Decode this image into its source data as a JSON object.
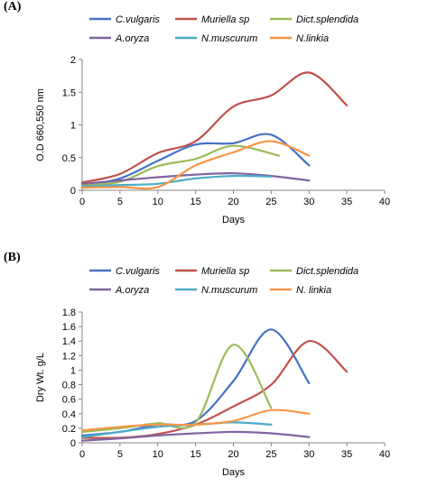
{
  "chart_data": [
    {
      "panel_label": "(A)",
      "type": "line",
      "xlabel": "Days",
      "ylabel": "O.D 660,550 nm",
      "xlim": [
        0,
        40
      ],
      "ylim": [
        0,
        2
      ],
      "xticks": [
        "0",
        "5",
        "10",
        "15",
        "20",
        "25",
        "30",
        "35",
        "40"
      ],
      "yticks": [
        "0",
        "0.5",
        "1",
        "1.5",
        "2"
      ],
      "legend_position": "top",
      "series": [
        {
          "name": "C.vulgaris",
          "color": "#4472C4",
          "x": [
            0,
            5,
            10,
            15,
            20,
            25,
            30
          ],
          "y": [
            0.07,
            0.18,
            0.45,
            0.7,
            0.72,
            0.85,
            0.38
          ]
        },
        {
          "name": "Muriella sp",
          "color": "#C0504D",
          "x": [
            0,
            5,
            10,
            15,
            20,
            25,
            30,
            35
          ],
          "y": [
            0.12,
            0.25,
            0.57,
            0.75,
            1.28,
            1.45,
            1.8,
            1.3
          ]
        },
        {
          "name": "Dict.splendida",
          "color": "#9BBB59",
          "x": [
            0,
            5,
            10,
            15,
            20,
            26
          ],
          "y": [
            0.08,
            0.13,
            0.37,
            0.48,
            0.68,
            0.53
          ]
        },
        {
          "name": "A.oryza",
          "color": "#8064A2",
          "x": [
            0,
            5,
            10,
            15,
            20,
            25,
            30
          ],
          "y": [
            0.1,
            0.15,
            0.2,
            0.24,
            0.26,
            0.22,
            0.15
          ]
        },
        {
          "name": "N.muscurum",
          "color": "#4BACC6",
          "x": [
            0,
            5,
            10,
            15,
            20,
            25
          ],
          "y": [
            0.06,
            0.08,
            0.1,
            0.18,
            0.22,
            0.21
          ]
        },
        {
          "name": "N.linkia",
          "color": "#F79646",
          "x": [
            0,
            5,
            10,
            15,
            20,
            25,
            30
          ],
          "y": [
            0.04,
            0.05,
            0.05,
            0.38,
            0.58,
            0.75,
            0.53
          ]
        }
      ]
    },
    {
      "panel_label": "(B)",
      "type": "line",
      "xlabel": "Days",
      "ylabel": "Dry Wt. g/L",
      "xlim": [
        0,
        40
      ],
      "ylim": [
        0,
        1.8
      ],
      "xticks": [
        "0",
        "5",
        "10",
        "15",
        "20",
        "25",
        "30",
        "35",
        "40"
      ],
      "yticks": [
        "0",
        "0.2",
        "0.4",
        "0.6",
        "0.8",
        "1",
        "1.2",
        "1.4",
        "1.6",
        "1.8"
      ],
      "legend_position": "top",
      "series": [
        {
          "name": "C.vulgaris",
          "color": "#4472C4",
          "x": [
            0,
            5,
            10,
            15,
            20,
            25,
            30
          ],
          "y": [
            0.1,
            0.15,
            0.25,
            0.3,
            0.85,
            1.56,
            0.82
          ]
        },
        {
          "name": "Muriella sp",
          "color": "#C0504D",
          "x": [
            0,
            5,
            10,
            15,
            20,
            25,
            30,
            35
          ],
          "y": [
            0.07,
            0.07,
            0.12,
            0.25,
            0.5,
            0.8,
            1.4,
            0.98
          ]
        },
        {
          "name": "Dict.splendida",
          "color": "#9BBB59",
          "x": [
            0,
            5,
            10,
            15,
            20,
            25
          ],
          "y": [
            0.15,
            0.2,
            0.27,
            0.28,
            1.35,
            0.48
          ]
        },
        {
          "name": "A.oryza",
          "color": "#8064A2",
          "x": [
            0,
            5,
            10,
            15,
            20,
            25,
            30
          ],
          "y": [
            0.03,
            0.06,
            0.1,
            0.13,
            0.15,
            0.13,
            0.08
          ]
        },
        {
          "name": "N.muscurum",
          "color": "#4BACC6",
          "x": [
            0,
            5,
            10,
            15,
            20,
            25
          ],
          "y": [
            0.08,
            0.15,
            0.22,
            0.25,
            0.28,
            0.25
          ]
        },
        {
          "name": "N. linkia",
          "color": "#F79646",
          "x": [
            0,
            5,
            10,
            15,
            20,
            25,
            30
          ],
          "y": [
            0.17,
            0.22,
            0.25,
            0.25,
            0.3,
            0.45,
            0.4
          ]
        }
      ]
    }
  ]
}
